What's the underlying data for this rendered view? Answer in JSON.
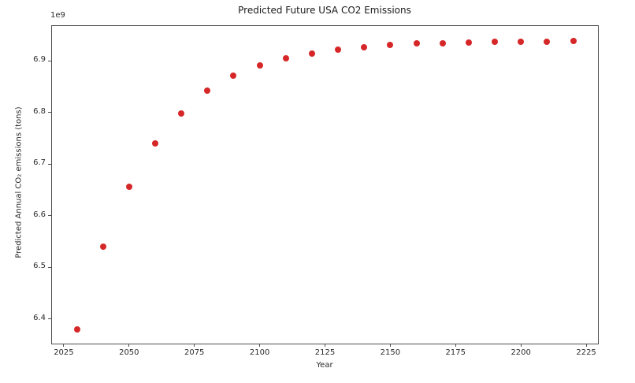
{
  "chart_data": {
    "type": "scatter",
    "title": "Predicted Future USA CO2 Emissions",
    "xlabel": "Year",
    "ylabel": "Predicted Annual CO₂ emissions (tons)",
    "y_offset_text": "1e9",
    "x": [
      2030,
      2040,
      2050,
      2060,
      2070,
      2080,
      2090,
      2100,
      2110,
      2120,
      2130,
      2140,
      2150,
      2160,
      2170,
      2180,
      2190,
      2200,
      2210,
      2220
    ],
    "y_billions": [
      6.38,
      6.54,
      6.656,
      6.74,
      6.799,
      6.842,
      6.871,
      6.891,
      6.905,
      6.915,
      6.922,
      6.927,
      6.931,
      6.934,
      6.935,
      6.936,
      6.937,
      6.938,
      6.938,
      6.939
    ],
    "xlim": [
      2020.5,
      2229.5
    ],
    "ylim_billions": [
      6.352,
      6.968
    ],
    "xticks": [
      2025,
      2050,
      2075,
      2100,
      2125,
      2150,
      2175,
      2200,
      2225
    ],
    "yticks_billions": [
      6.4,
      6.5,
      6.6,
      6.7,
      6.8,
      6.9
    ],
    "grid": false,
    "legend": false,
    "marker_color": "#d62728",
    "spine_color": "#4f4f4f",
    "background_color": "#ffffff"
  }
}
